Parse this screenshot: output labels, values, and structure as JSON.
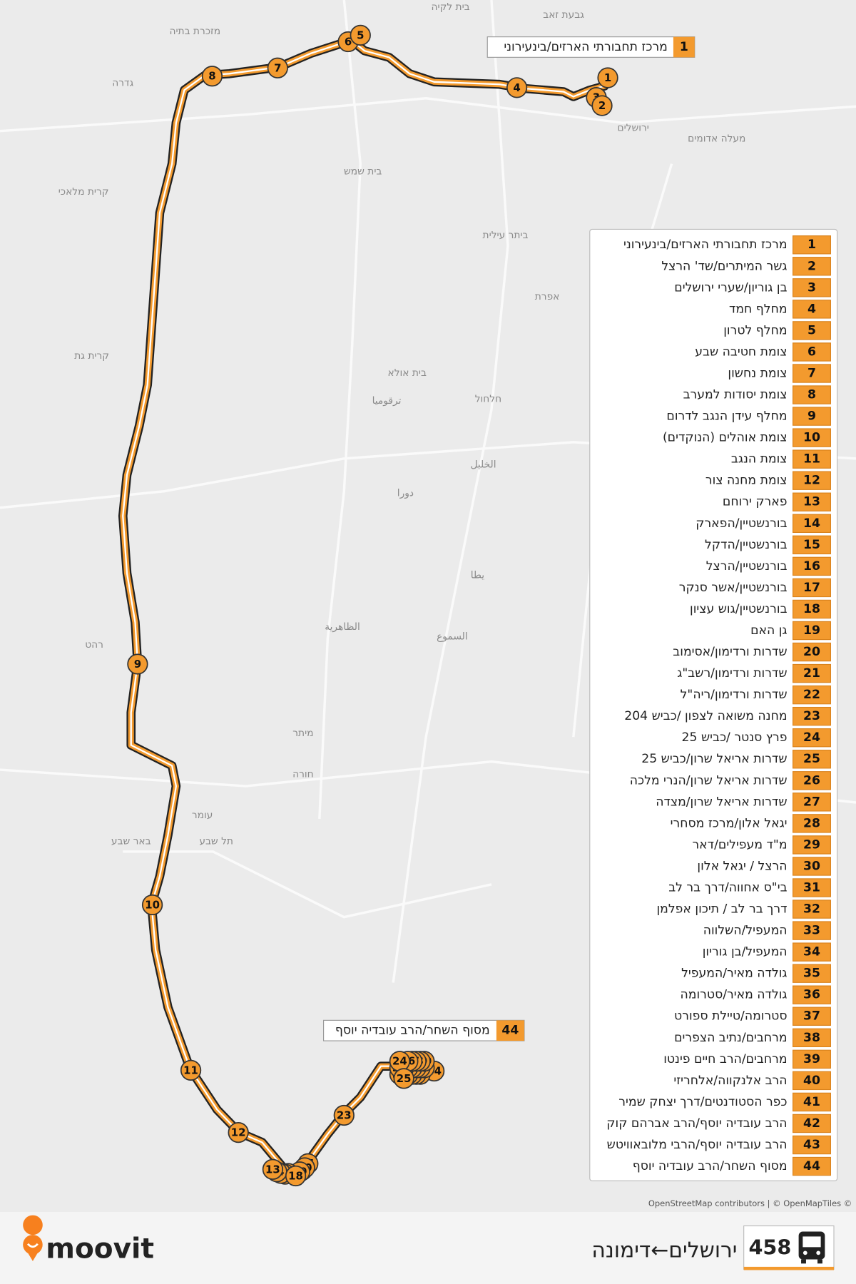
{
  "route": {
    "number": "458",
    "name": "ירושלים←דימונה"
  },
  "brand": "moovit",
  "attribution": "OpenStreetMap contributors | © OpenMapTiles ©",
  "stops": [
    {
      "number": "1",
      "name": "מרכז תחבורתי הארזים/בינעירוני"
    },
    {
      "number": "2",
      "name": "גשר המיתרים/שד' הרצל"
    },
    {
      "number": "3",
      "name": "בן גוריון/שערי ירושלים"
    },
    {
      "number": "4",
      "name": "מחלף חמד"
    },
    {
      "number": "5",
      "name": "מחלף לטרון"
    },
    {
      "number": "6",
      "name": "צומת חטיבה שבע"
    },
    {
      "number": "7",
      "name": "צומת נחשון"
    },
    {
      "number": "8",
      "name": "צומת יסודות למערב"
    },
    {
      "number": "9",
      "name": "מחלף עידן הנגב לדרום"
    },
    {
      "number": "10",
      "name": "צומת אוהלים (הנוקדים)"
    },
    {
      "number": "11",
      "name": "צומת הנגב"
    },
    {
      "number": "12",
      "name": "צומת מחנה צור"
    },
    {
      "number": "13",
      "name": "פארק ירוחם"
    },
    {
      "number": "14",
      "name": "בורנשטיין/הפארק"
    },
    {
      "number": "15",
      "name": "בורנשטיין/הדקל"
    },
    {
      "number": "16",
      "name": "בורנשטיין/הרצל"
    },
    {
      "number": "17",
      "name": "בורנשטיין/אשר סנקר"
    },
    {
      "number": "18",
      "name": "בורנשטיין/גוש עציון"
    },
    {
      "number": "19",
      "name": "גן האם"
    },
    {
      "number": "20",
      "name": "שדרות ורדימון/אסימוב"
    },
    {
      "number": "21",
      "name": "שדרות ורדימון/רשב\"ג"
    },
    {
      "number": "22",
      "name": "שדרות ורדימון/ריה\"ל"
    },
    {
      "number": "23",
      "name": "מחנה משואה לצפון /כביש 204"
    },
    {
      "number": "24",
      "name": "פרץ סנטר /כביש 25"
    },
    {
      "number": "25",
      "name": "שדרות אריאל שרון/כביש 25"
    },
    {
      "number": "26",
      "name": "שדרות אריאל שרון/הנרי מלכה"
    },
    {
      "number": "27",
      "name": "שדרות אריאל שרון/מצדה"
    },
    {
      "number": "28",
      "name": "יגאל אלון/מרכז מסחרי"
    },
    {
      "number": "29",
      "name": "מ\"ד מעפילים/דאר"
    },
    {
      "number": "30",
      "name": "הרצל / יגאל אלון"
    },
    {
      "number": "31",
      "name": "בי\"ס אחווה/דרך בר לב"
    },
    {
      "number": "32",
      "name": "דרך בר לב / תיכון אפלמן"
    },
    {
      "number": "33",
      "name": "המעפיל/השלווה"
    },
    {
      "number": "34",
      "name": "המעפיל/בן גוריון"
    },
    {
      "number": "35",
      "name": "גולדה מאיר/המעפיל"
    },
    {
      "number": "36",
      "name": "גולדה מאיר/סטרומה"
    },
    {
      "number": "37",
      "name": "סטרומה/טיילת ספורט"
    },
    {
      "number": "38",
      "name": "מרחבים/נתיב הצפרים"
    },
    {
      "number": "39",
      "name": "מרחבים/הרב חיים פינטו"
    },
    {
      "number": "40",
      "name": "הרב אלנקווה/אלחריזי"
    },
    {
      "number": "41",
      "name": "כפר הסטודנטים/דרך יצחק שמיר"
    },
    {
      "number": "42",
      "name": "הרב עובדיה יוסף/הרב אברהם קוק"
    },
    {
      "number": "43",
      "name": "הרב עובדיה יוסף/הרבי מלובאוויטש"
    },
    {
      "number": "44",
      "name": "מסוף השחר/הרב עובדיה יוסף"
    }
  ],
  "map_labels": [
    "בית לקיה",
    "גבעת זאב",
    "מזכרת בתיה",
    "גדרה",
    "ירושלים",
    "מעלה אדומים",
    "בית שמש",
    "קרית מלאכי",
    "ביתר עילית",
    "אפרת",
    "קרית גת",
    "בית אולא",
    "חלחול",
    "ترقوميا",
    "الخليل",
    "دورا",
    "يطا",
    "الظاهرية",
    "السموع",
    "רהט",
    "מיתר",
    "חורה",
    "עומר",
    "באר שבע",
    "תל שבע"
  ]
}
